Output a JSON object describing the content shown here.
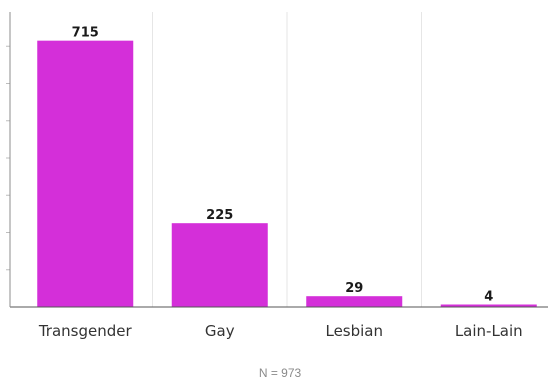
{
  "chart_data": {
    "type": "bar",
    "categories": [
      "Transgender",
      "Gay",
      "Lesbian",
      "Lain-Lain"
    ],
    "values": [
      715,
      225,
      29,
      4
    ],
    "data_labels": [
      "715",
      "225",
      "29",
      "4"
    ],
    "title": "",
    "xlabel": "",
    "ylabel": "",
    "ylim": [
      0,
      800
    ],
    "grid": true,
    "legend": "none",
    "bar_color": "#d42fd9",
    "note": "N = 973"
  }
}
